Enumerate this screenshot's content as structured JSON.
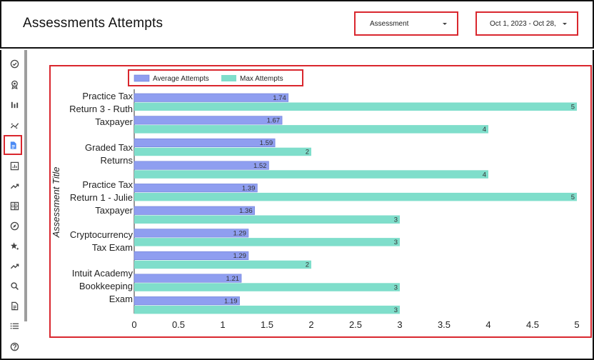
{
  "header": {
    "title": "Assessments Attempts",
    "assessment_select": "Assessment",
    "date_select": "Oct 1, 2023 - Oct 28,"
  },
  "sidebar": {
    "items": [
      {
        "icon": "check-circle-icon"
      },
      {
        "icon": "award-icon"
      },
      {
        "icon": "bar-chart-icon"
      },
      {
        "icon": "scatter-trend-icon"
      },
      {
        "icon": "document-icon",
        "active": true
      },
      {
        "icon": "report-chart-icon"
      },
      {
        "icon": "trending-up-icon"
      },
      {
        "icon": "calculator-icon"
      },
      {
        "icon": "compass-icon"
      },
      {
        "icon": "star-sparkle-icon"
      },
      {
        "icon": "trending-up-icon"
      },
      {
        "icon": "search-icon"
      },
      {
        "icon": "file-icon"
      },
      {
        "icon": "list-icon"
      },
      {
        "icon": "help-icon"
      }
    ]
  },
  "chart_data": {
    "type": "bar",
    "orientation": "horizontal",
    "ylabel": "Assessment Title",
    "xlim": [
      0,
      5
    ],
    "xticks": [
      "0",
      "0.5",
      "1",
      "1.5",
      "2",
      "2.5",
      "3",
      "3.5",
      "4",
      "4.5",
      "5"
    ],
    "legend_position": "top-left",
    "category_labels": [
      {
        "lines": [
          "Practice Tax",
          "Return 3 - Ruth",
          "Taxpayer"
        ]
      },
      {
        "lines": [
          "Graded Tax",
          "Returns"
        ]
      },
      {
        "lines": [
          "Practice Tax",
          "Return 1 - Julie",
          "Taxpayer"
        ]
      },
      {
        "lines": [
          "Cryptocurrency",
          "Tax Exam"
        ]
      },
      {
        "lines": [
          "Intuit Academy",
          "Bookkeeping",
          "Exam"
        ]
      }
    ],
    "series": [
      {
        "name": "Average Attempts",
        "color": "#8f9ef0",
        "values": [
          1.74,
          1.67,
          1.59,
          1.52,
          1.39,
          1.36,
          1.29,
          1.29,
          1.21,
          1.19
        ],
        "labels": [
          "1.74",
          "1.67",
          "1.59",
          "1.52",
          "1.39",
          "1.36",
          "1.29",
          "1.29",
          "1.21",
          "1.19"
        ]
      },
      {
        "name": "Max Attempts",
        "color": "#7fdecb",
        "values": [
          5,
          4,
          2,
          4,
          5,
          3,
          3,
          2,
          3,
          3
        ],
        "labels": [
          "5",
          "4",
          "2",
          "4",
          "5",
          "3",
          "3",
          "2",
          "3",
          "3"
        ]
      }
    ]
  }
}
